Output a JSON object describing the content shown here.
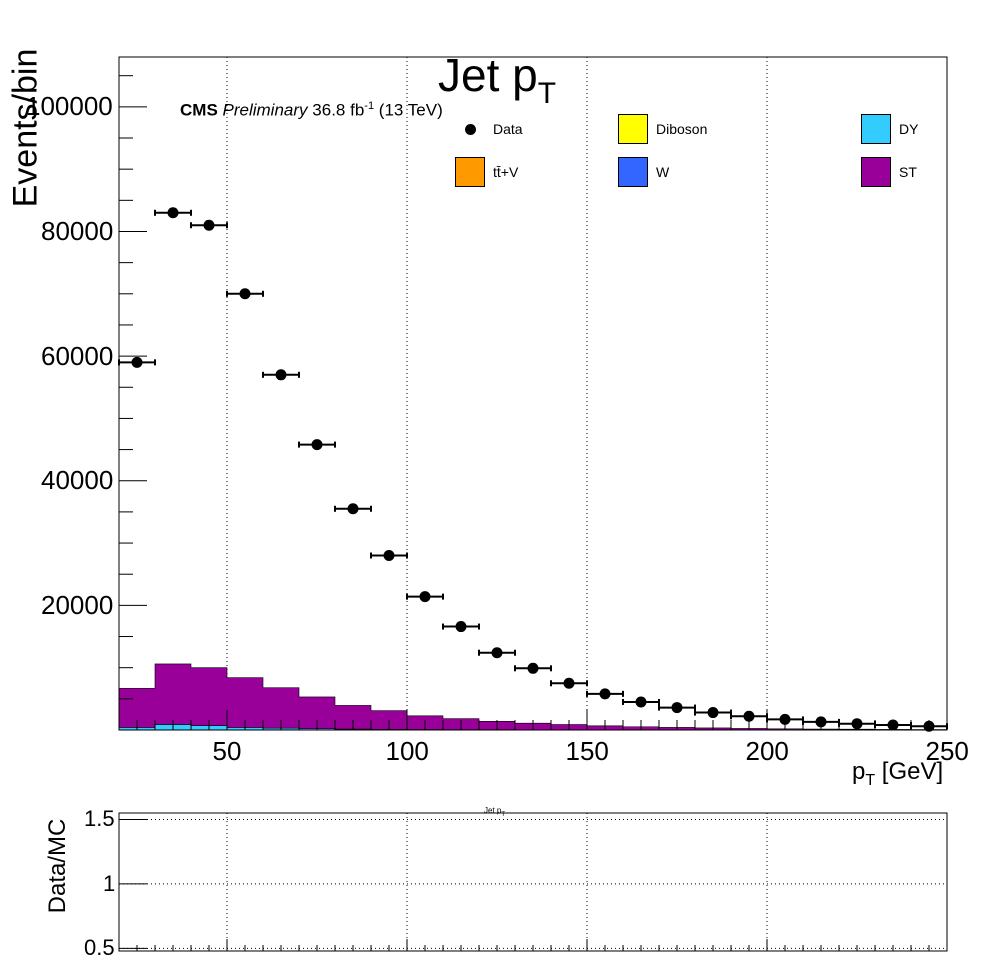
{
  "title": {
    "main": "Jet p",
    "sub": "T"
  },
  "cms_label": {
    "bold": "CMS",
    "italic": "Preliminary",
    "lumi": "36.8 fb",
    "lumi_sup": "-1",
    "energy": "(13 TeV)"
  },
  "ratio_title": {
    "main": "Jet p",
    "sub": "T"
  },
  "legend": [
    {
      "label": "Data",
      "color": "#000000",
      "kind": "marker"
    },
    {
      "label": "Diboson",
      "color": "#ffff00",
      "kind": "fill"
    },
    {
      "label": "DY",
      "color": "#33ccff",
      "kind": "fill"
    },
    {
      "label": "tt̄+V",
      "color": "#ff9900",
      "kind": "fill"
    },
    {
      "label": "W",
      "color": "#3366ff",
      "kind": "fill"
    },
    {
      "label": "ST",
      "color": "#990099",
      "kind": "fill"
    }
  ],
  "chart_data": [
    {
      "type": "bar",
      "title": "Jet pT",
      "xlabel": "pT [GeV]",
      "ylabel": "Events/bin",
      "xlim": [
        20,
        250
      ],
      "ylim": [
        0,
        108000
      ],
      "x_ticks": [
        50,
        100,
        150,
        200,
        250
      ],
      "y_ticks": [
        20000,
        40000,
        60000,
        80000,
        100000
      ],
      "grid": "vertical dotted at x ticks",
      "bin_edges": [
        20,
        30,
        40,
        50,
        60,
        70,
        80,
        90,
        100,
        110,
        120,
        130,
        140,
        150,
        160,
        170,
        180,
        190,
        200,
        210,
        220,
        230,
        240,
        250
      ],
      "stacked_series": [
        {
          "name": "DY",
          "color": "#33ccff",
          "values": [
            400,
            900,
            700,
            400,
            300,
            200,
            150,
            100,
            80,
            60,
            50,
            40,
            30,
            25,
            20,
            15,
            12,
            10,
            8,
            6,
            5,
            4,
            3
          ]
        },
        {
          "name": "ST",
          "color": "#990099",
          "values": [
            6300,
            9700,
            9300,
            8000,
            6500,
            5100,
            3800,
            3000,
            2200,
            1750,
            1350,
            1050,
            850,
            650,
            500,
            400,
            320,
            250,
            190,
            150,
            120,
            90,
            70
          ]
        }
      ],
      "data_points": {
        "name": "Data",
        "x": [
          25,
          35,
          45,
          55,
          65,
          75,
          85,
          95,
          105,
          115,
          125,
          135,
          145,
          155,
          165,
          175,
          185,
          195,
          205,
          215,
          225,
          235,
          245
        ],
        "y": [
          59000,
          83000,
          81000,
          70000,
          57000,
          45800,
          35500,
          28000,
          21400,
          16600,
          12400,
          9900,
          7500,
          5800,
          4500,
          3600,
          2800,
          2200,
          1700,
          1300,
          1000,
          800,
          600
        ],
        "x_error": 5
      }
    },
    {
      "type": "scatter",
      "title": "Jet pT",
      "xlabel": "",
      "ylabel": "Data/MC",
      "xlim": [
        20,
        250
      ],
      "ylim": [
        0.48,
        1.55
      ],
      "y_ticks": [
        0.5,
        1,
        1.5
      ],
      "y_tick_labels": [
        "0.5",
        "1",
        "1.5"
      ],
      "grid": "horizontal and vertical dotted",
      "points": []
    }
  ]
}
